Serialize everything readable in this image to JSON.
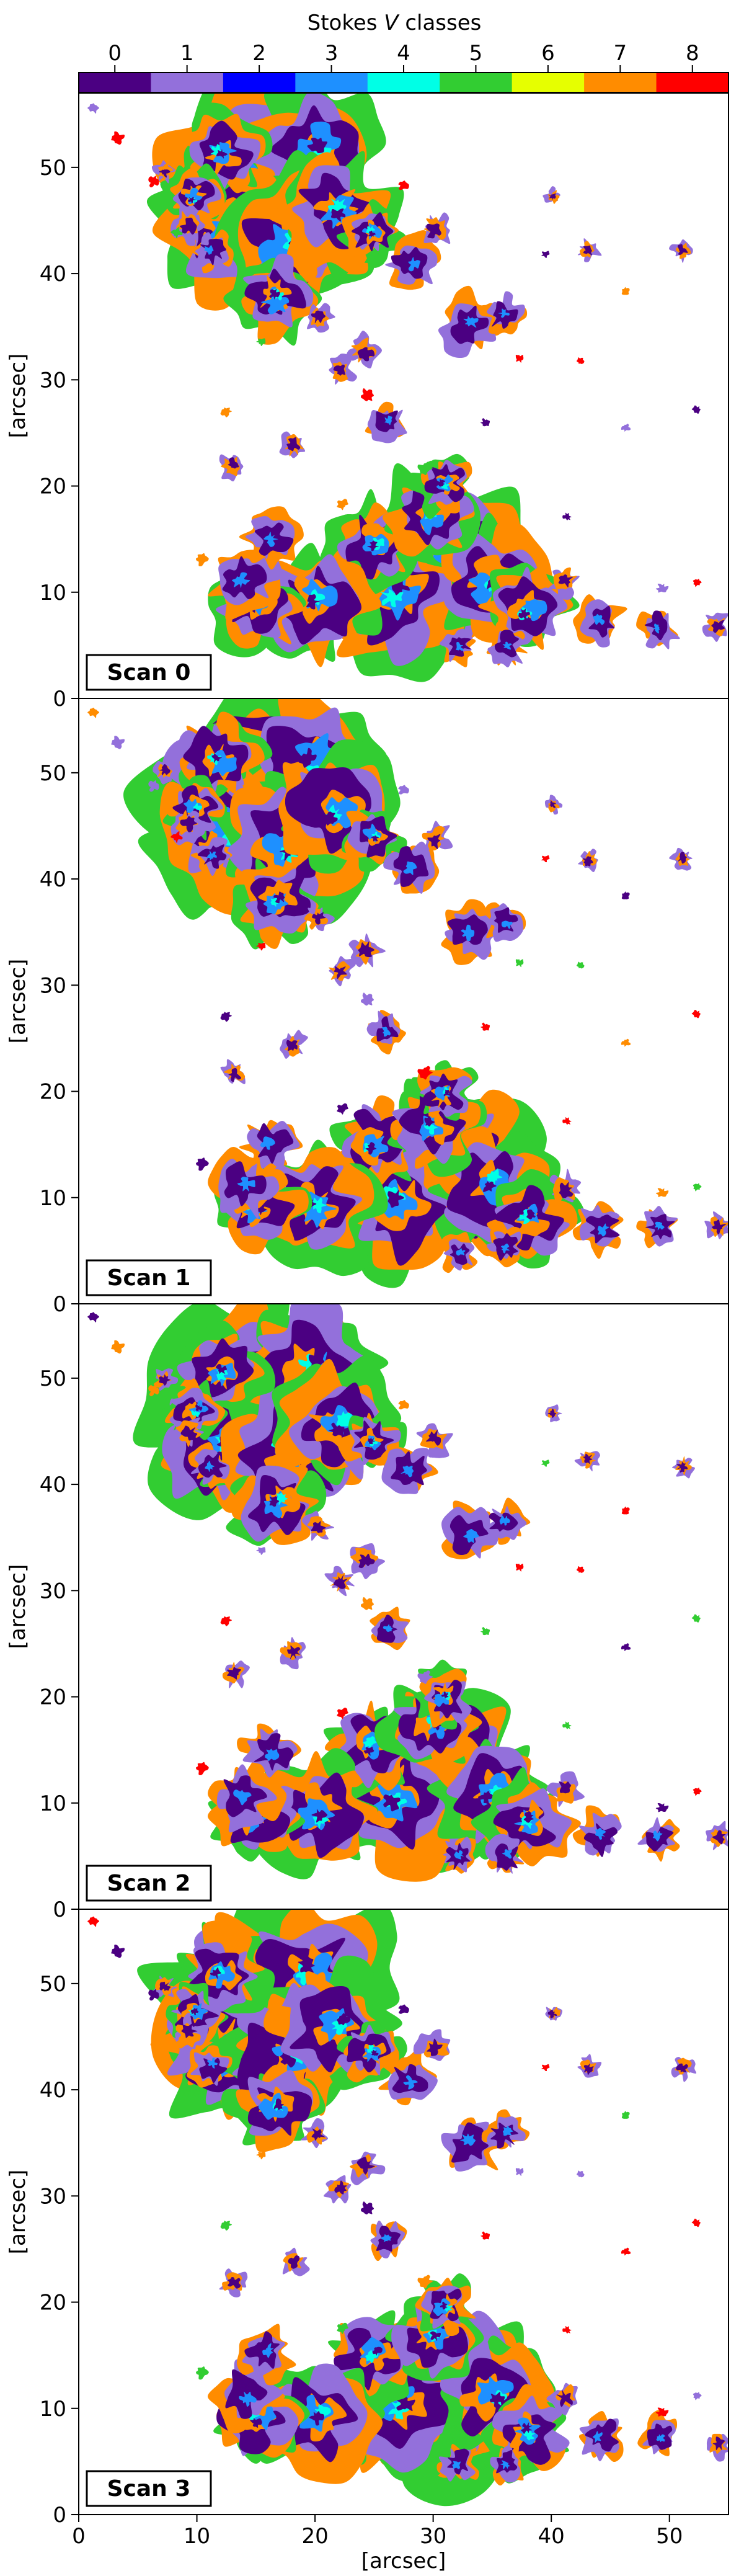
{
  "colorbar": {
    "title": "Stokes V classes",
    "title_prefix": "Stokes",
    "title_italic": "V",
    "title_suffix": "classes",
    "classes": [
      {
        "label": "0",
        "color": "#4b0082"
      },
      {
        "label": "1",
        "color": "#9370db"
      },
      {
        "label": "2",
        "color": "#0000ff"
      },
      {
        "label": "3",
        "color": "#1e90ff"
      },
      {
        "label": "4",
        "color": "#00ffe6"
      },
      {
        "label": "5",
        "color": "#32cd32"
      },
      {
        "label": "6",
        "color": "#e6ff00"
      },
      {
        "label": "7",
        "color": "#ff8c00"
      },
      {
        "label": "8",
        "color": "#ff0000"
      }
    ]
  },
  "chart_data": [
    {
      "type": "heatmap",
      "panel_label": "Scan 0",
      "ylabel": "[arcsec]",
      "xlabel": "",
      "xlim": [
        0,
        55
      ],
      "ylim": [
        0,
        57
      ],
      "xticks": [
        0,
        10,
        20,
        30,
        40,
        50
      ],
      "yticks": [
        0,
        10,
        20,
        30,
        40,
        50
      ],
      "classes": [
        0,
        1,
        2,
        3,
        4,
        5,
        6,
        7,
        8
      ]
    },
    {
      "type": "heatmap",
      "panel_label": "Scan 1",
      "ylabel": "[arcsec]",
      "xlabel": "",
      "xlim": [
        0,
        55
      ],
      "ylim": [
        0,
        57
      ],
      "xticks": [
        0,
        10,
        20,
        30,
        40,
        50
      ],
      "yticks": [
        0,
        10,
        20,
        30,
        40,
        50
      ],
      "classes": [
        0,
        1,
        2,
        3,
        4,
        5,
        6,
        7,
        8
      ]
    },
    {
      "type": "heatmap",
      "panel_label": "Scan 2",
      "ylabel": "[arcsec]",
      "xlabel": "",
      "xlim": [
        0,
        55
      ],
      "ylim": [
        0,
        57
      ],
      "xticks": [
        0,
        10,
        20,
        30,
        40,
        50
      ],
      "yticks": [
        0,
        10,
        20,
        30,
        40,
        50
      ],
      "classes": [
        0,
        1,
        2,
        3,
        4,
        5,
        6,
        7,
        8
      ]
    },
    {
      "type": "heatmap",
      "panel_label": "Scan 3",
      "ylabel": "[arcsec]",
      "xlabel": "[arcsec]",
      "xlim": [
        0,
        55
      ],
      "ylim": [
        0,
        57
      ],
      "xticks": [
        0,
        10,
        20,
        30,
        40,
        50
      ],
      "yticks": [
        0,
        10,
        20,
        30,
        40,
        50
      ],
      "classes": [
        0,
        1,
        2,
        3,
        4,
        5,
        6,
        7,
        8
      ]
    }
  ]
}
